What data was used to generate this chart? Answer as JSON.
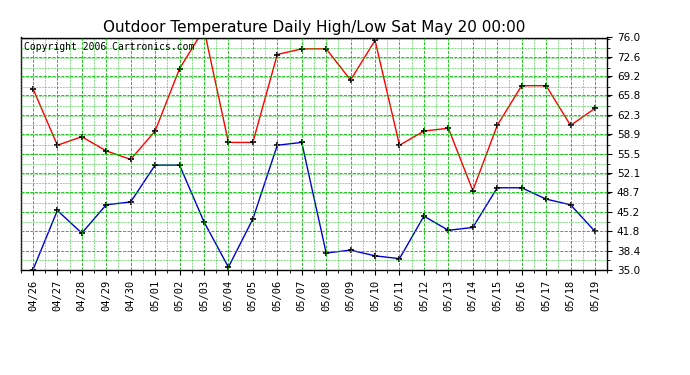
{
  "title": "Outdoor Temperature Daily High/Low Sat May 20 00:00",
  "copyright": "Copyright 2006 Cartronics.com",
  "x_labels": [
    "04/26",
    "04/27",
    "04/28",
    "04/29",
    "04/30",
    "05/01",
    "05/02",
    "05/03",
    "05/04",
    "05/05",
    "05/06",
    "05/07",
    "05/08",
    "05/09",
    "05/10",
    "05/11",
    "05/12",
    "05/13",
    "05/14",
    "05/15",
    "05/16",
    "05/17",
    "05/18",
    "05/19"
  ],
  "high_values": [
    67.0,
    57.0,
    58.5,
    56.0,
    54.5,
    59.5,
    70.5,
    77.5,
    57.5,
    57.5,
    73.0,
    74.0,
    74.0,
    68.5,
    75.5,
    57.0,
    59.5,
    60.0,
    49.0,
    60.5,
    67.5,
    67.5,
    60.5,
    63.5
  ],
  "low_values": [
    35.0,
    45.5,
    41.5,
    46.5,
    47.0,
    53.5,
    53.5,
    43.5,
    35.5,
    44.0,
    57.0,
    57.5,
    38.0,
    38.5,
    37.5,
    37.0,
    44.5,
    42.0,
    42.5,
    49.5,
    49.5,
    47.5,
    46.5,
    41.8
  ],
  "high_color": "#ff0000",
  "low_color": "#0000cc",
  "grid_color": "#00bb00",
  "bg_color": "#ffffff",
  "border_color": "#000000",
  "ylim": [
    35.0,
    76.0
  ],
  "yticks": [
    35.0,
    38.4,
    41.8,
    45.2,
    48.7,
    52.1,
    55.5,
    58.9,
    62.3,
    65.8,
    69.2,
    72.6,
    76.0
  ],
  "title_fontsize": 11,
  "copyright_fontsize": 7,
  "tick_fontsize": 7.5
}
